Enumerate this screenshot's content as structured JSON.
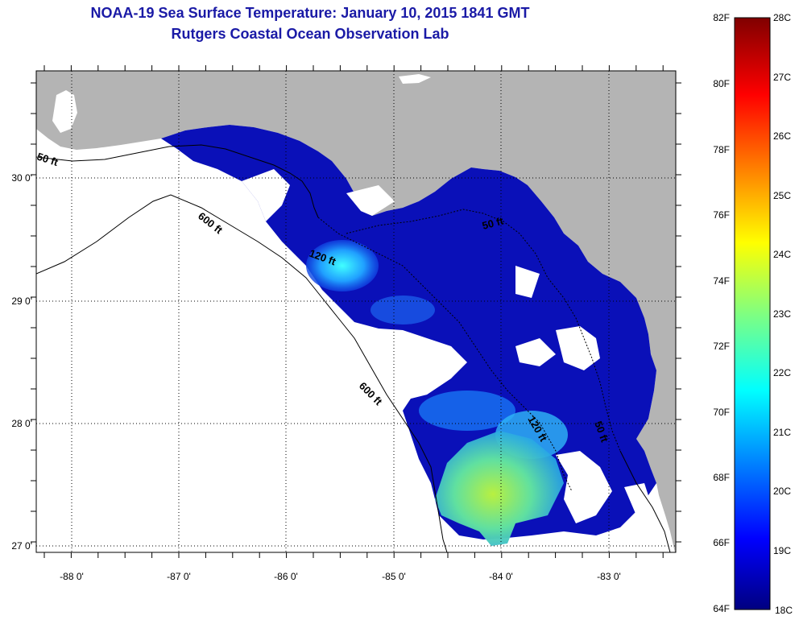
{
  "title": "NOAA-19 Sea Surface Temperature:  January 10, 2015 1841 GMT",
  "subtitle": "Rutgers Coastal Ocean Observation Lab",
  "x_ticks": [
    "-88 0'",
    "-87 0'",
    "-86 0'",
    "-85 0'",
    "-84 0'",
    "-83 0'"
  ],
  "y_ticks": [
    "30 0'",
    "29 0'",
    "28 0'",
    "27 0'"
  ],
  "contour_labels": [
    "50 ft",
    "600 ft",
    "120 ft",
    "50 ft",
    "600 ft",
    "120 ft",
    "50 ft"
  ],
  "colorbar": {
    "fahrenheit": [
      "82F",
      "80F",
      "78F",
      "76F",
      "74F",
      "72F",
      "70F",
      "68F",
      "66F",
      "64F"
    ],
    "celsius": [
      "28C",
      "27C",
      "26C",
      "25C",
      "24C",
      "23C",
      "22C",
      "21C",
      "20C",
      "19C",
      "18C"
    ]
  },
  "colors": {
    "land": "#b4b4b4",
    "title": "#1a1aa6",
    "sst_min": "#000080",
    "sst_max": "#800000"
  }
}
